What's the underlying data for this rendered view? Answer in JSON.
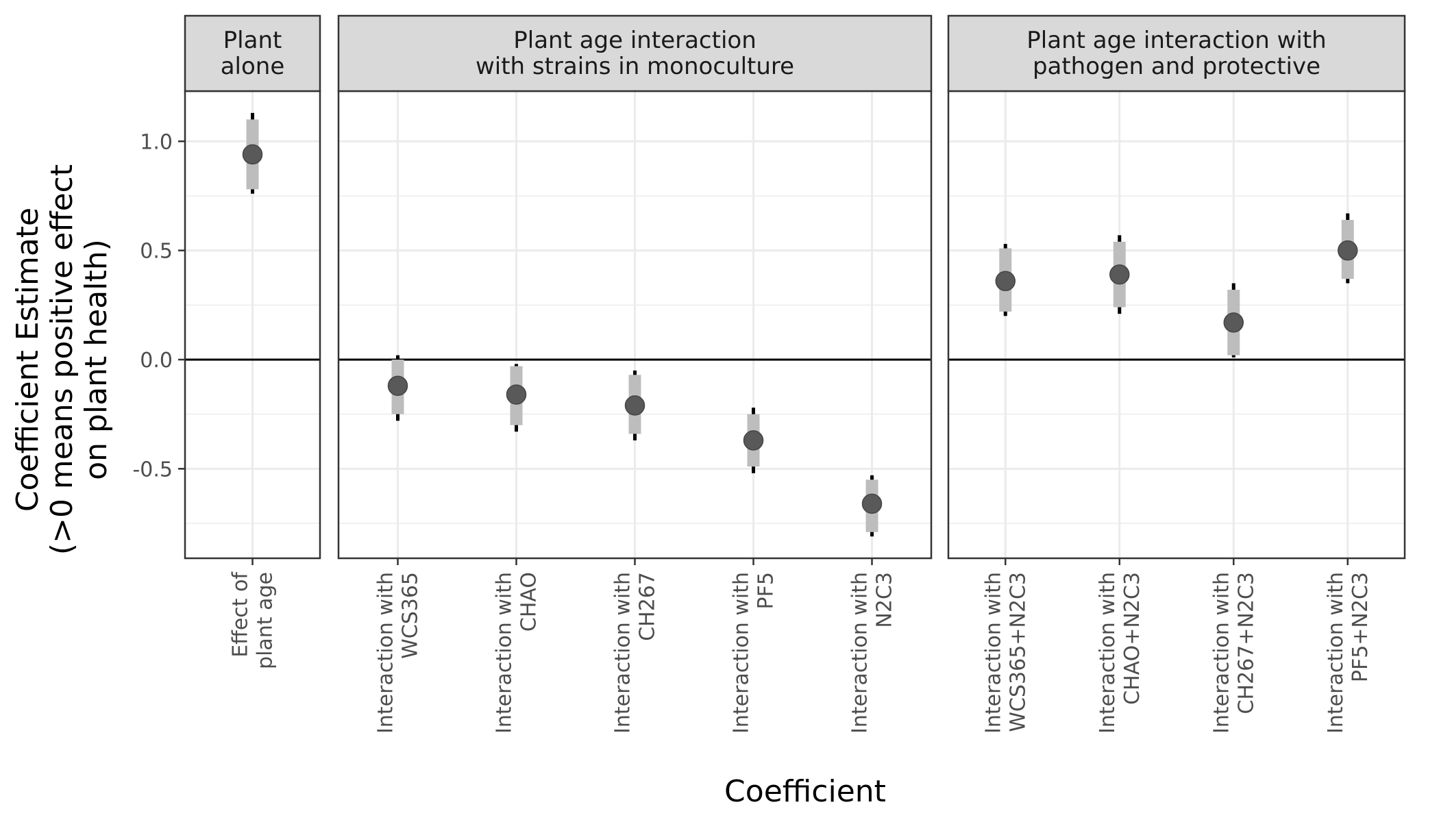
{
  "chart_data": {
    "type": "pointrange",
    "xlabel": "Coefficient",
    "ylabel_lines": [
      "Coefficient Estimate",
      "(>0 means positive effect",
      "on plant health)"
    ],
    "ylim": [
      -0.91,
      1.23
    ],
    "y_ticks": [
      {
        "value": 1.0,
        "label": "1.0"
      },
      {
        "value": 0.5,
        "label": "0.5"
      },
      {
        "value": 0.0,
        "label": "0.0"
      },
      {
        "value": -0.5,
        "label": "-0.5"
      }
    ],
    "y_minor": [
      0.75,
      0.25,
      -0.25,
      -0.75
    ],
    "reference_line": 0,
    "grid": true,
    "colors": {
      "point": "#595959",
      "inner_interval": "#bdbdbd",
      "outer_interval": "#000000",
      "grid": "#ebebeb",
      "strip_fill": "#d9d9d9",
      "border": "#333333"
    },
    "panels": [
      {
        "strip": [
          "Plant",
          "alone"
        ],
        "points": [
          {
            "label": [
              "Effect of",
              "plant age"
            ],
            "estimate": 0.94,
            "inner": [
              0.78,
              1.1
            ],
            "outer": [
              0.76,
              1.13
            ]
          }
        ]
      },
      {
        "strip": [
          "Plant age interaction",
          "with strains in monoculture"
        ],
        "points": [
          {
            "label": [
              "Interaction with",
              "WCS365"
            ],
            "estimate": -0.12,
            "inner": [
              -0.25,
              0.0
            ],
            "outer": [
              -0.28,
              0.02
            ]
          },
          {
            "label": [
              "Interaction with",
              "CHAO"
            ],
            "estimate": -0.16,
            "inner": [
              -0.3,
              -0.03
            ],
            "outer": [
              -0.33,
              -0.02
            ]
          },
          {
            "label": [
              "Interaction with",
              "CH267"
            ],
            "estimate": -0.21,
            "inner": [
              -0.34,
              -0.07
            ],
            "outer": [
              -0.37,
              -0.05
            ]
          },
          {
            "label": [
              "Interaction with",
              "PF5"
            ],
            "estimate": -0.37,
            "inner": [
              -0.49,
              -0.25
            ],
            "outer": [
              -0.52,
              -0.22
            ]
          },
          {
            "label": [
              "Interaction with",
              "N2C3"
            ],
            "estimate": -0.66,
            "inner": [
              -0.79,
              -0.55
            ],
            "outer": [
              -0.81,
              -0.53
            ]
          }
        ]
      },
      {
        "strip": [
          "Plant age interaction with",
          "pathogen and protective"
        ],
        "points": [
          {
            "label": [
              "Interaction with",
              "WCS365+N2C3"
            ],
            "estimate": 0.36,
            "inner": [
              0.22,
              0.51
            ],
            "outer": [
              0.2,
              0.53
            ]
          },
          {
            "label": [
              "Interaction with",
              "CHAO+N2C3"
            ],
            "estimate": 0.39,
            "inner": [
              0.24,
              0.54
            ],
            "outer": [
              0.21,
              0.57
            ]
          },
          {
            "label": [
              "Interaction with",
              "CH267+N2C3"
            ],
            "estimate": 0.17,
            "inner": [
              0.02,
              0.32
            ],
            "outer": [
              0.01,
              0.35
            ]
          },
          {
            "label": [
              "Interaction with",
              "PF5+N2C3"
            ],
            "estimate": 0.5,
            "inner": [
              0.37,
              0.64
            ],
            "outer": [
              0.35,
              0.67
            ]
          }
        ]
      }
    ]
  }
}
